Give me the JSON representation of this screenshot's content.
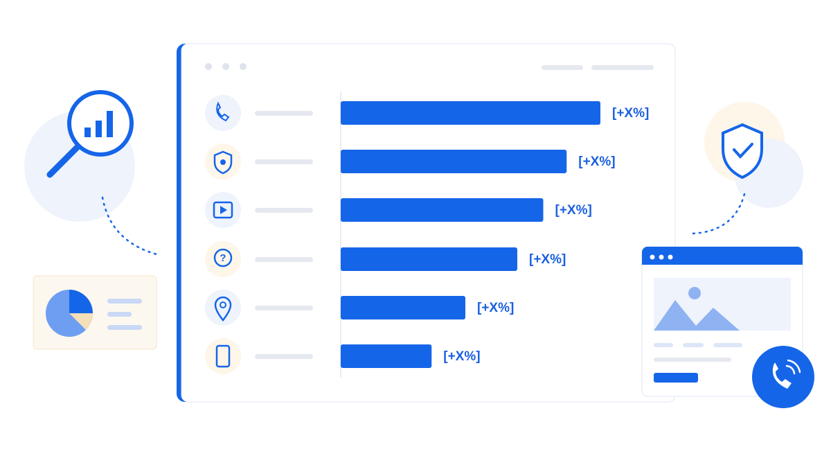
{
  "chart_data": {
    "type": "bar",
    "orientation": "horizontal",
    "color": "#1565e8",
    "categories": [
      null,
      null,
      null,
      null,
      null,
      null
    ],
    "values": [
      100,
      87,
      78,
      68,
      48,
      35
    ],
    "value_labels": [
      "[+X%]",
      "[+X%]",
      "[+X%]",
      "[+X%]",
      "[+X%]",
      "[+X%]"
    ],
    "xlim": [
      0,
      100
    ]
  }
}
